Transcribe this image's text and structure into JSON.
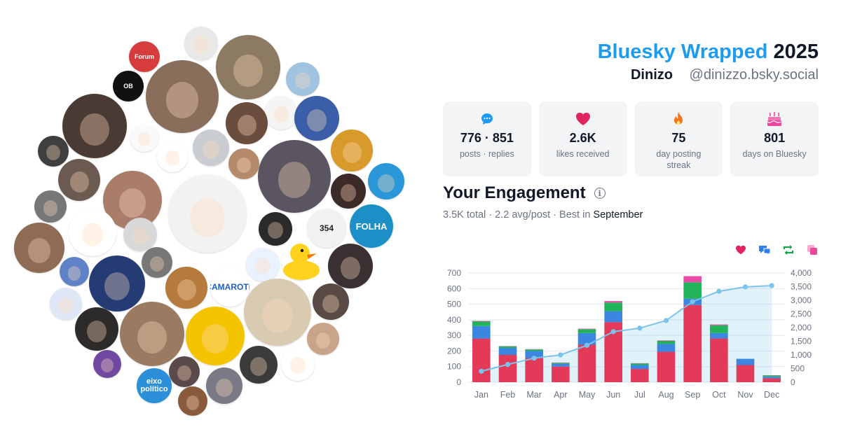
{
  "header": {
    "brand": "Bluesky Wrapped",
    "year": "2025",
    "display_name": "Dinizo",
    "handle": "@dinizzo.bsky.social"
  },
  "stats": [
    {
      "icon": "speech-bubble-icon",
      "value": "776 · 851",
      "label": "posts · replies",
      "color": "#1d9bf0"
    },
    {
      "icon": "heart-icon",
      "value": "2.6K",
      "label": "likes received",
      "color": "#e0245e"
    },
    {
      "icon": "fire-icon",
      "value": "75",
      "label": "day posting streak",
      "color": "#f97316"
    },
    {
      "icon": "cake-icon",
      "value": "801",
      "label": "days on Bluesky",
      "color": "#ec4899"
    }
  ],
  "engagement": {
    "title": "Your Engagement",
    "total": "3.5K",
    "total_suffix": "total · 2.2 avg/post · Best in",
    "best_month": "September"
  },
  "legend": [
    {
      "icon": "heart-icon",
      "series": "likes",
      "color": "#e0245e"
    },
    {
      "icon": "reply-icon",
      "series": "replies",
      "color": "#2f80ed"
    },
    {
      "icon": "repost-icon",
      "series": "reposts",
      "color": "#16a34a"
    },
    {
      "icon": "quote-icon",
      "series": "quotes",
      "color": "#ec4899"
    }
  ],
  "chart_data": {
    "type": "bar",
    "categories": [
      "Jan",
      "Feb",
      "Mar",
      "Apr",
      "May",
      "Jun",
      "Jul",
      "Aug",
      "Sep",
      "Oct",
      "Nov",
      "Dec"
    ],
    "stacked": true,
    "series": [
      {
        "key": "likes",
        "color": "#e23a58",
        "values": [
          280,
          175,
          155,
          100,
          240,
          385,
          85,
          195,
          495,
          280,
          110,
          25
        ]
      },
      {
        "key": "replies",
        "color": "#3a86e0",
        "values": [
          80,
          45,
          45,
          18,
          75,
          70,
          25,
          50,
          40,
          35,
          40,
          10
        ]
      },
      {
        "key": "reposts",
        "color": "#21b35a",
        "values": [
          30,
          10,
          10,
          6,
          25,
          55,
          10,
          20,
          105,
          50,
          0,
          8
        ]
      },
      {
        "key": "quotes",
        "color": "#e94aa6",
        "values": [
          3,
          2,
          2,
          2,
          3,
          10,
          2,
          3,
          40,
          5,
          0,
          2
        ]
      }
    ],
    "cumulative": {
      "name": "cumulative",
      "color": "#7cc3ec",
      "values": [
        400,
        650,
        880,
        1000,
        1350,
        1850,
        1980,
        2260,
        2950,
        3330,
        3490,
        3540
      ]
    },
    "y_left": {
      "lim": [
        0,
        700
      ],
      "ticks": [
        "0",
        "100",
        "200",
        "300",
        "400",
        "500",
        "600",
        "700"
      ]
    },
    "y_right": {
      "lim": [
        0,
        4000
      ],
      "ticks": [
        "0",
        "500",
        "1,000",
        "1,500",
        "2,000",
        "2,500",
        "3,000",
        "3,500",
        "4,000"
      ]
    },
    "grid": true
  },
  "collage": [
    {
      "label": "Forum",
      "bg": "#d63c3c",
      "fg": "#ffffff"
    },
    {
      "label": "OB",
      "bg": "#111111",
      "fg": "#ffffff"
    },
    {
      "label": "FOLHA",
      "bg": "#1c8fc7",
      "fg": "#ffffff"
    },
    {
      "label": "eixo político",
      "bg": "#2c8fd9",
      "fg": "#ffffff"
    },
    {
      "label": "354",
      "bg": "#f1f1f1",
      "fg": "#222222"
    },
    {
      "label": "CAMAROTE",
      "bg": "#ffffff",
      "fg": "#1c5fc7"
    }
  ]
}
